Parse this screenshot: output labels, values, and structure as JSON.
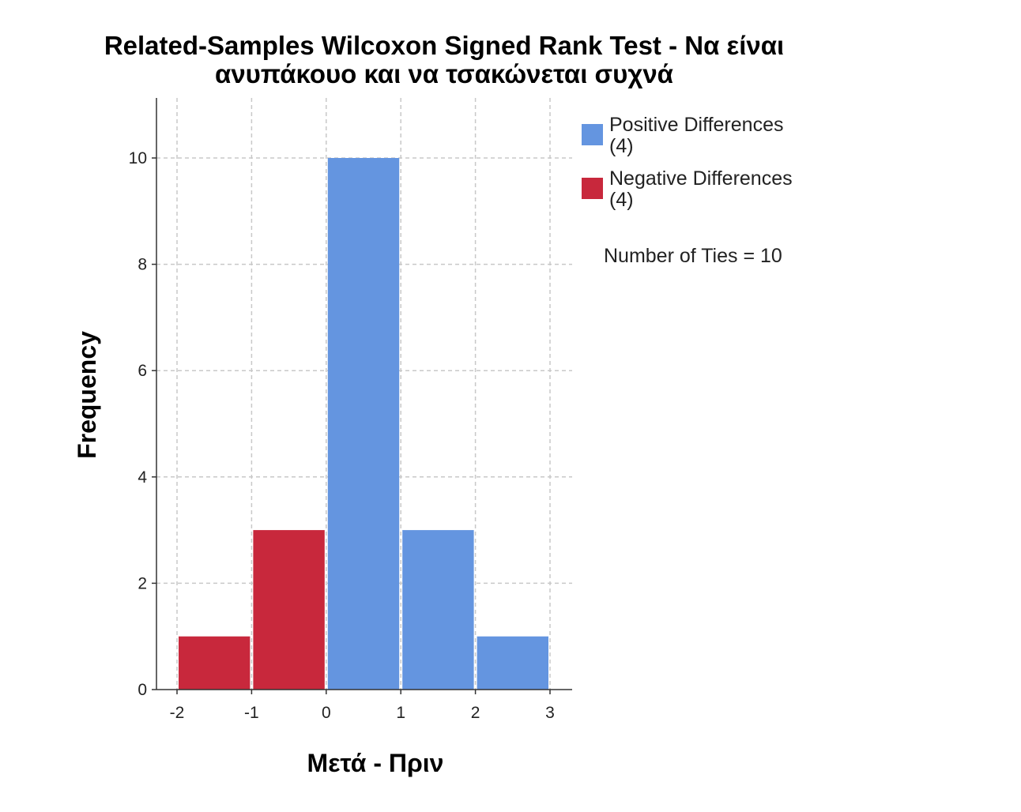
{
  "chart_data": {
    "type": "bar",
    "title": "Related-Samples Wilcoxon Signed Rank Test - Να είναι ανυπάκουο και να τσακώνεται συχνά",
    "title_lines": [
      "Related-Samples Wilcoxon Signed Rank Test - Να είναι",
      "ανυπάκουο και να τσακώνεται συχνά"
    ],
    "xlabel": "Μετά - Πριν",
    "ylabel": "Frequency",
    "xlim": [
      -2,
      3
    ],
    "ylim": [
      0,
      11
    ],
    "x_ticks": [
      -2,
      -1,
      0,
      1,
      2,
      3
    ],
    "x_tick_labels": [
      "-2",
      "-1",
      "0",
      "1",
      "2",
      "3"
    ],
    "y_ticks": [
      0,
      2,
      4,
      6,
      8,
      10
    ],
    "y_tick_labels": [
      "0",
      "2",
      "4",
      "6",
      "8",
      "10"
    ],
    "grid": true,
    "legend_position": "top-right outside",
    "bins": [
      {
        "from": -2,
        "to": -1,
        "value": 1,
        "series": "negative"
      },
      {
        "from": -1,
        "to": 0,
        "value": 3,
        "series": "negative"
      },
      {
        "from": 0,
        "to": 1,
        "value": 10,
        "series": "positive"
      },
      {
        "from": 1,
        "to": 2,
        "value": 3,
        "series": "positive"
      },
      {
        "from": 2,
        "to": 3,
        "value": 1,
        "series": "positive"
      }
    ],
    "series": [
      {
        "key": "positive",
        "name": "Positive Differences",
        "count_label": "(4)",
        "color": "#6495e0"
      },
      {
        "key": "negative",
        "name": "Negative Differences",
        "count_label": "(4)",
        "color": "#c8283c"
      }
    ],
    "annotation": "Number of Ties = 10"
  }
}
